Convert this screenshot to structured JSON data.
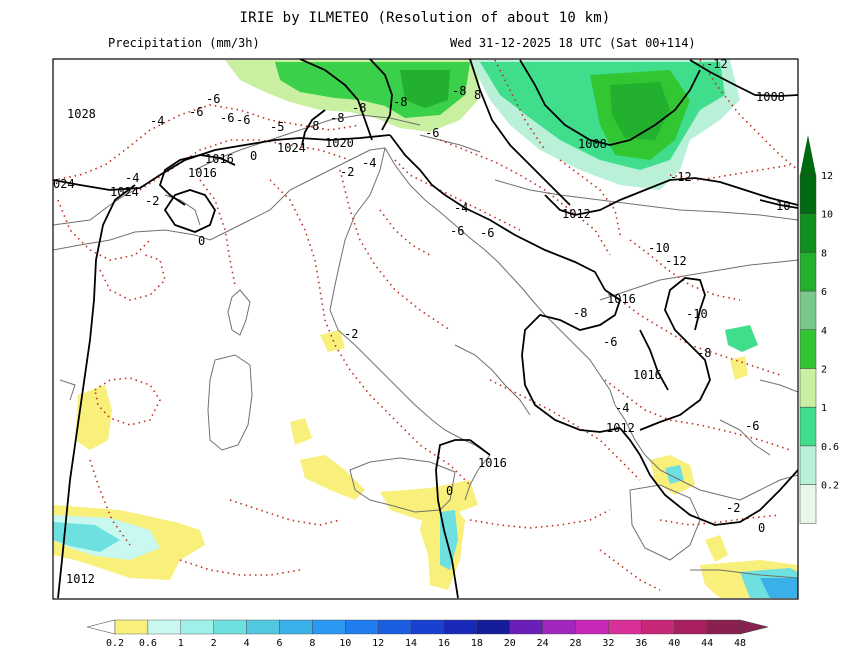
{
  "header": {
    "title": "IRIE by ILMETEO (Resolution of about 10 km)",
    "variable": "Precipitation (mm/3h)",
    "valid_time": "Wed 31-12-2025 18 UTC (Sat 00+114)"
  },
  "colors": {
    "pressure_isobar": "#000000",
    "temperature_isotherm": "#c03020",
    "coastline": "#707070",
    "precip_low": "#f8f07a",
    "precip_mid": "#3ad04a",
    "precip_high": "#0a8a18"
  },
  "right_scale": {
    "labels": [
      "12",
      "10",
      "8",
      "6",
      "4",
      "2",
      "1",
      "0.6",
      "0.2"
    ],
    "colors": [
      "#006a10",
      "#118f1c",
      "#22b02e",
      "#7bc98a",
      "#33c633",
      "#c8f0a0",
      "#40dd8c",
      "#b8f0d8",
      "#e8f8e8"
    ]
  },
  "bottom_scale": {
    "labels": [
      "0.2",
      "0.6",
      "1",
      "2",
      "4",
      "6",
      "8",
      "10",
      "12",
      "14",
      "16",
      "18",
      "20",
      "24",
      "28",
      "32",
      "36",
      "40",
      "44",
      "48"
    ],
    "colors": [
      "#f8f07a",
      "#c8f8f0",
      "#9ef0e8",
      "#6ee0e0",
      "#52c8e0",
      "#3ab0e8",
      "#2a98f0",
      "#1f7df0",
      "#1c5ee0",
      "#1a40d0",
      "#1828b8",
      "#141c98",
      "#6a20b8",
      "#a028c0",
      "#c828b8",
      "#d83098",
      "#c82878",
      "#a82060",
      "#882050"
    ]
  },
  "isobars": [
    {
      "label": "1028"
    },
    {
      "label": "024"
    },
    {
      "label": "1024"
    },
    {
      "label": "1016"
    },
    {
      "label": "1016"
    },
    {
      "label": "1024"
    },
    {
      "label": "1020"
    },
    {
      "label": "1012"
    },
    {
      "label": "1008"
    },
    {
      "label": "1008"
    },
    {
      "label": "1012"
    },
    {
      "label": "1016"
    },
    {
      "label": "1016"
    },
    {
      "label": "1012"
    },
    {
      "label": "1016"
    },
    {
      "label": "1020"
    },
    {
      "label": "10"
    }
  ],
  "isotherms": [
    {
      "label": "-4"
    },
    {
      "label": "-6"
    },
    {
      "label": "-6"
    },
    {
      "label": "-6"
    },
    {
      "label": "-6"
    },
    {
      "label": "-5"
    },
    {
      "label": "-8"
    },
    {
      "label": "-8"
    },
    {
      "label": "-8"
    },
    {
      "label": "-8"
    },
    {
      "label": "-8"
    },
    {
      "label": "8"
    },
    {
      "label": "-6"
    },
    {
      "label": "-2"
    },
    {
      "label": "-4"
    },
    {
      "label": "-4"
    },
    {
      "label": "-2"
    },
    {
      "label": "0"
    },
    {
      "label": "0"
    },
    {
      "label": "-6"
    },
    {
      "label": "-6"
    },
    {
      "label": "-4"
    },
    {
      "label": "-10"
    },
    {
      "label": "-12"
    },
    {
      "label": "-12"
    },
    {
      "label": "-12"
    },
    {
      "label": "-8"
    },
    {
      "label": "-6"
    },
    {
      "label": "-8"
    },
    {
      "label": "-10"
    },
    {
      "label": "-4"
    },
    {
      "label": "-6"
    },
    {
      "label": "-2"
    },
    {
      "label": "-2"
    },
    {
      "label": "0"
    },
    {
      "label": "0"
    },
    {
      "label": "-4"
    }
  ]
}
